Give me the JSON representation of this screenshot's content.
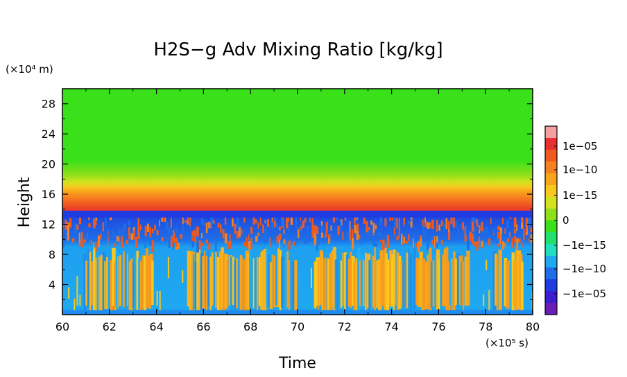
{
  "chart_data": {
    "type": "heatmap",
    "title": "H2S−g Adv Mixing Ratio [kg/kg]",
    "xlabel": "Time",
    "ylabel": "Height",
    "x_unit": "(×10⁵ s)",
    "y_unit": "(×10⁴ m)",
    "x_range": [
      60,
      80
    ],
    "y_range": [
      0,
      30
    ],
    "x_ticks": [
      "60",
      "62",
      "64",
      "66",
      "68",
      "70",
      "72",
      "74",
      "76",
      "78",
      "80"
    ],
    "y_ticks": [
      "4",
      "8",
      "12",
      "16",
      "20",
      "24",
      "28"
    ],
    "colorbar": {
      "labels": [
        "1e−05",
        "1e−10",
        "1e−15",
        "0",
        "−1e−15",
        "−1e−10",
        "−1e−05"
      ],
      "colors": [
        "#f4a0a0",
        "#e83030",
        "#f05a1e",
        "#f58220",
        "#f8a41c",
        "#f8c81e",
        "#d4e21e",
        "#8ee01a",
        "#3ae01a",
        "#22e06e",
        "#20e0c0",
        "#1ea8f0",
        "#1e6ee8",
        "#1e3ce0",
        "#3a1ed0",
        "#6a1eb8"
      ]
    },
    "layers": [
      {
        "range": [
          0,
          1
        ],
        "value": "−1e−10"
      },
      {
        "range": [
          1,
          9
        ],
        "value": "mixed 1e−15 … 1e−10 / −1e−10"
      },
      {
        "range": [
          9,
          13
        ],
        "value": "mixed 1e−10 / −1e−10"
      },
      {
        "range": [
          13,
          14
        ],
        "value": "−1e−05"
      },
      {
        "range": [
          14,
          16
        ],
        "value": "1e−05 … 1e−10"
      },
      {
        "range": [
          16,
          19
        ],
        "value": "1e−15"
      },
      {
        "range": [
          19,
          30
        ],
        "value": "0"
      }
    ],
    "grid": false
  }
}
